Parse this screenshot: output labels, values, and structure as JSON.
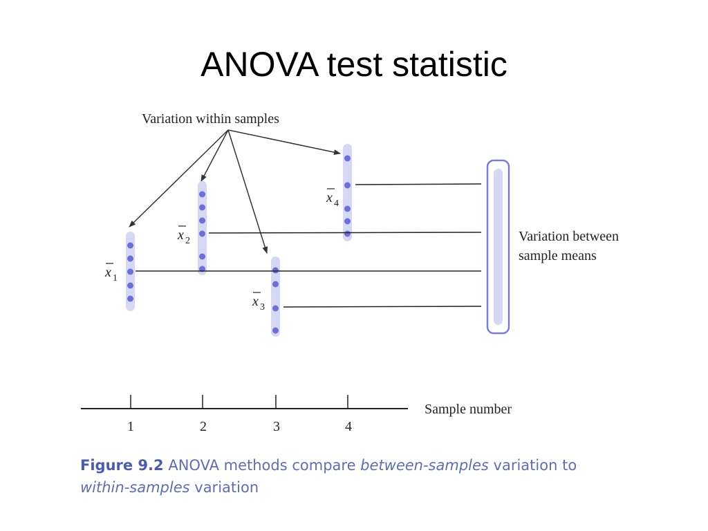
{
  "slide": {
    "title": "ANOVA test statistic"
  },
  "figure": {
    "within_label": "Variation within samples",
    "between_label_line1": "Variation between",
    "between_label_line2": "sample means",
    "axis_label": "Sample number",
    "means": [
      {
        "symbol": "x",
        "sub": "1"
      },
      {
        "symbol": "x",
        "sub": "2"
      },
      {
        "symbol": "x",
        "sub": "3"
      },
      {
        "symbol": "x",
        "sub": "4"
      }
    ],
    "ticks": [
      "1",
      "2",
      "3",
      "4"
    ],
    "colors": {
      "dot": "#6b6fd6",
      "band": "#d6d8f3",
      "bracket": "#7a7ad8",
      "line": "#222222"
    }
  },
  "caption": {
    "label": "Figure 9.2",
    "part1": "ANOVA methods compare",
    "em1": "between-samples",
    "part2": "variation to",
    "em2": "within-samples",
    "part3": "variation"
  }
}
